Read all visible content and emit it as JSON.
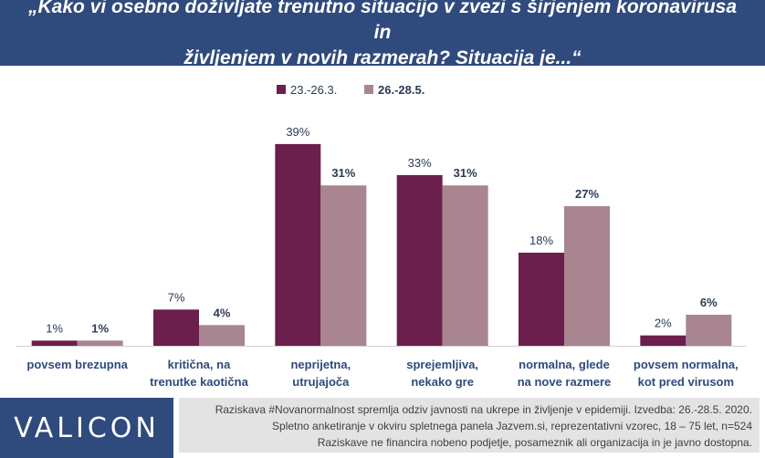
{
  "title": {
    "line1": "„Kako vi osebno doživljate trenutno situacijo v zvezi s širjenjem koronavirusa in",
    "line2": "življenjem v novih razmerah? Situacija je...“"
  },
  "colors": {
    "header_bg": "#2f4a7c",
    "series1": "#6b1f4c",
    "series2": "#a88590",
    "footer_bg": "#e3e3e3"
  },
  "chart_data": {
    "type": "bar",
    "categories": [
      [
        "povsem brezupna"
      ],
      [
        "kritična, na",
        "trenutke kaotična"
      ],
      [
        "neprijetna,",
        "utrujajoča"
      ],
      [
        "sprejemljiva,",
        "nekako gre"
      ],
      [
        "normalna, glede",
        "na nove razmere"
      ],
      [
        "povsem normalna,",
        "kot pred virusom"
      ]
    ],
    "series": [
      {
        "name": "23.-26.3.",
        "values": [
          1,
          7,
          39,
          33,
          18,
          2
        ],
        "labels": [
          "1%",
          "7%",
          "39%",
          "33%",
          "18%",
          "2%"
        ]
      },
      {
        "name": "26.-28.5.",
        "values": [
          1,
          4,
          31,
          31,
          27,
          6
        ],
        "labels": [
          "1%",
          "4%",
          "31%",
          "31%",
          "27%",
          "6%"
        ]
      }
    ],
    "ylim": [
      0,
      40
    ],
    "legend": "top-center",
    "grid": false
  },
  "footer": {
    "logo": "VALICON",
    "notes": [
      "Raziskava #Novanormalnost spremlja odziv javnosti na ukrepe in življenje v epidemiji. Izvedba: 26.-28.5. 2020.",
      "Spletno anketiranje v okviru spletnega panela Jazvem.si, reprezentativni vzorec, 18 – 75 let, n=524",
      "Raziskave ne financira nobeno podjetje, posameznik ali organizacija in je javno dostopna."
    ]
  }
}
